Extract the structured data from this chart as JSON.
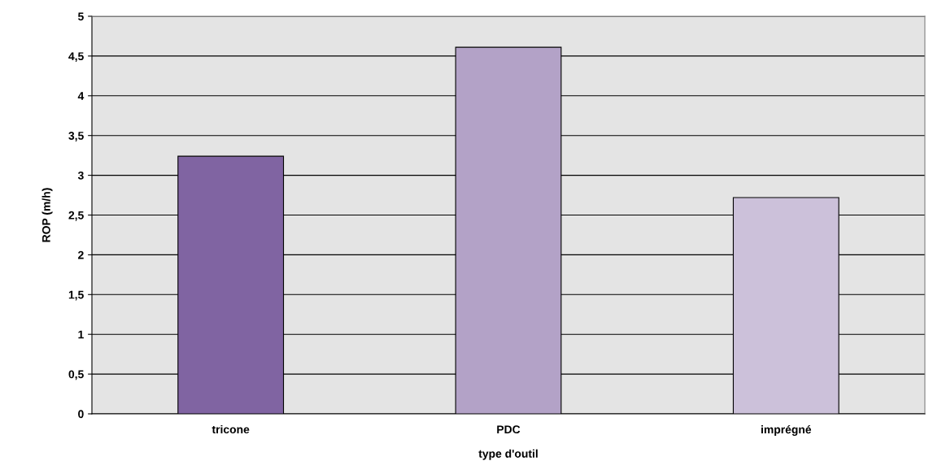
{
  "chart_data": {
    "type": "bar",
    "xlabel": "type d'outil",
    "ylabel": "ROP (m/h)",
    "categories": [
      "tricone",
      "PDC",
      "imprégné"
    ],
    "values": [
      3.24,
      4.61,
      2.72
    ],
    "colors": [
      "#8064a2",
      "#b3a2c7",
      "#ccc1da"
    ],
    "ylim": [
      0,
      5
    ],
    "yticks": [
      0,
      {
        "value": 0.5,
        "label": "0,5"
      },
      1,
      {
        "value": 1.5,
        "label": "1,5"
      },
      2,
      {
        "value": 2.5,
        "label": "2,5"
      },
      3,
      {
        "value": 3.5,
        "label": "3,5"
      },
      4,
      {
        "value": 4.5,
        "label": "4,5"
      },
      5
    ],
    "grid": "y"
  }
}
